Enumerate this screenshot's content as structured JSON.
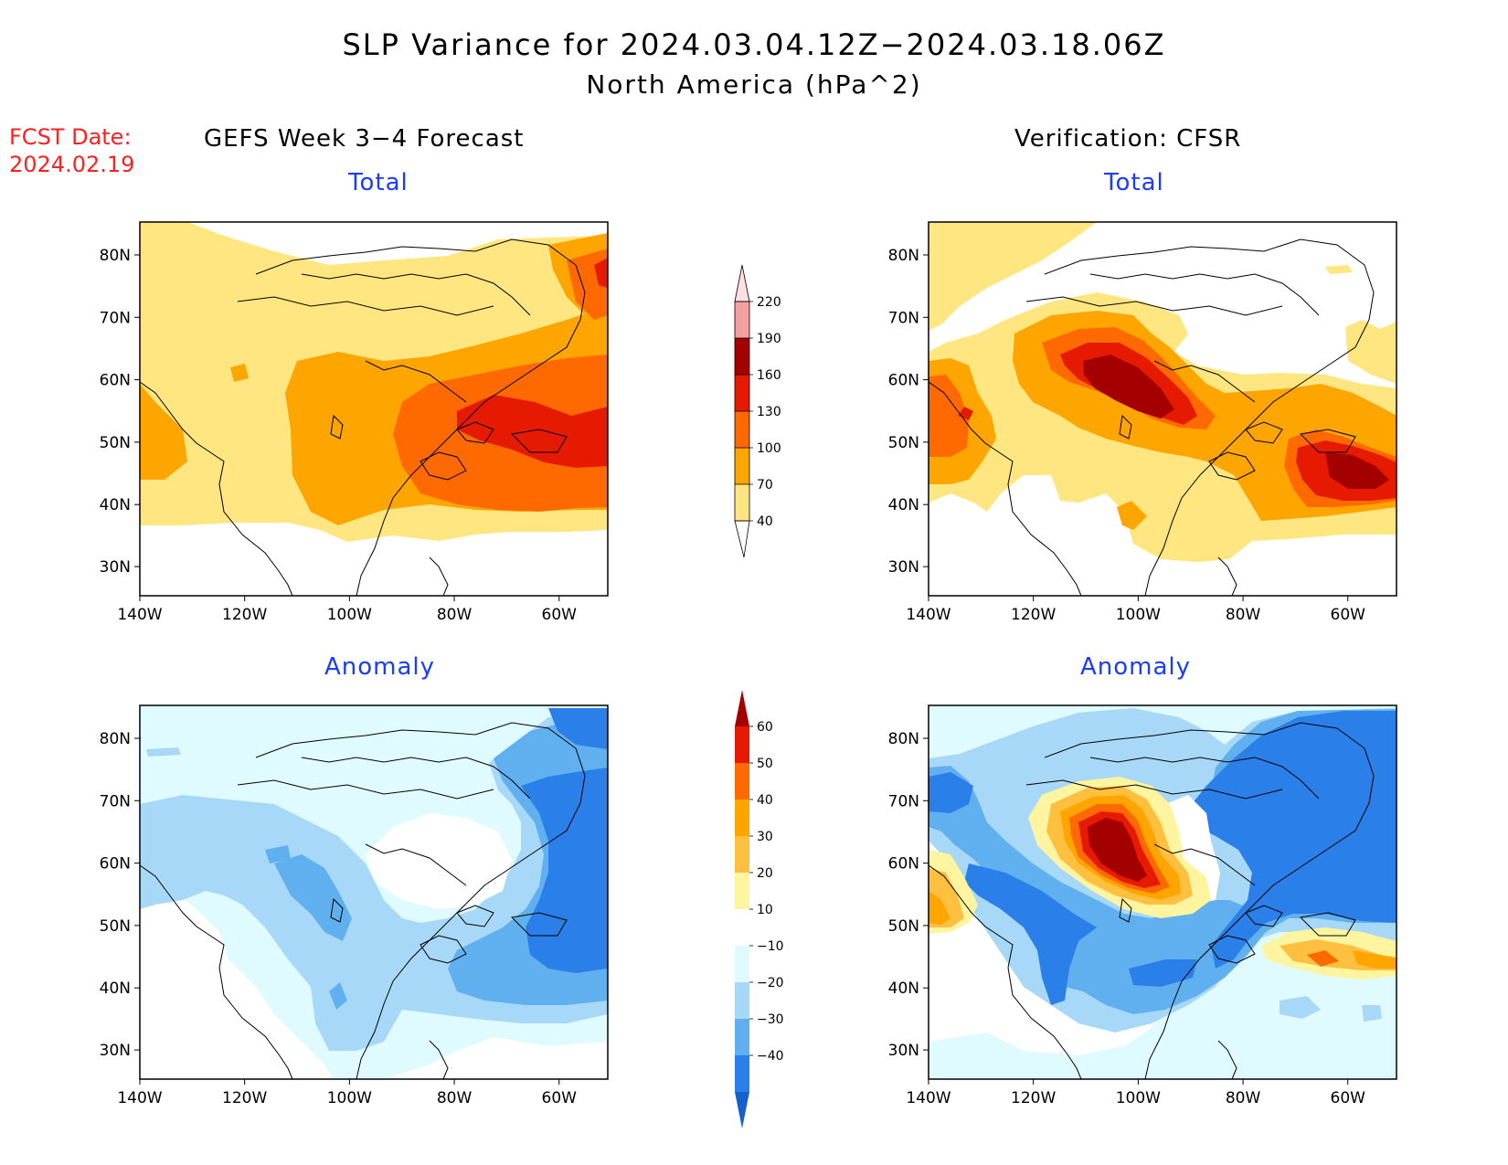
{
  "title": "SLP Variance for 2024.03.04.12Z−2024.03.18.06Z",
  "subtitle": "North America (hPa^2)",
  "forecast_date_label": "FCST Date:",
  "forecast_date": "2024.02.19",
  "left_column_title": "GEFS Week 3−4 Forecast",
  "right_column_title": "Verification: CFSR",
  "panels": [
    {
      "id": "gefs-total",
      "title": "Total"
    },
    {
      "id": "cfsr-total",
      "title": "Total"
    },
    {
      "id": "gefs-anomaly",
      "title": "Anomaly"
    },
    {
      "id": "cfsr-anomaly",
      "title": "Anomaly"
    }
  ],
  "axes": {
    "lat_ticks": [
      "80N",
      "70N",
      "60N",
      "50N",
      "40N",
      "30N"
    ],
    "lon_ticks": [
      "140W",
      "120W",
      "100W",
      "80W",
      "60W"
    ]
  },
  "total_colorbar": {
    "levels": [
      "40",
      "70",
      "100",
      "130",
      "160",
      "190",
      "220"
    ],
    "colors": [
      "#ffe680",
      "#ffa500",
      "#ff6a00",
      "#e61a00",
      "#a50000",
      "#f4a0a0",
      "#fde0e0"
    ]
  },
  "anomaly_colorbar": {
    "levels": [
      "60",
      "50",
      "40",
      "30",
      "20",
      "10",
      "−10",
      "−20",
      "−30",
      "−40"
    ],
    "colors": [
      "#a50000",
      "#e61a00",
      "#ff6a00",
      "#ffa500",
      "#ffc040",
      "#fff5a0",
      "#ffffff",
      "#e0fbff",
      "#a8d8f8",
      "#60b0f0",
      "#2a7fe8",
      "#1560d0"
    ]
  },
  "colors": {
    "title_blue": "#1a3cff",
    "fcst_red": "#ff2020"
  }
}
